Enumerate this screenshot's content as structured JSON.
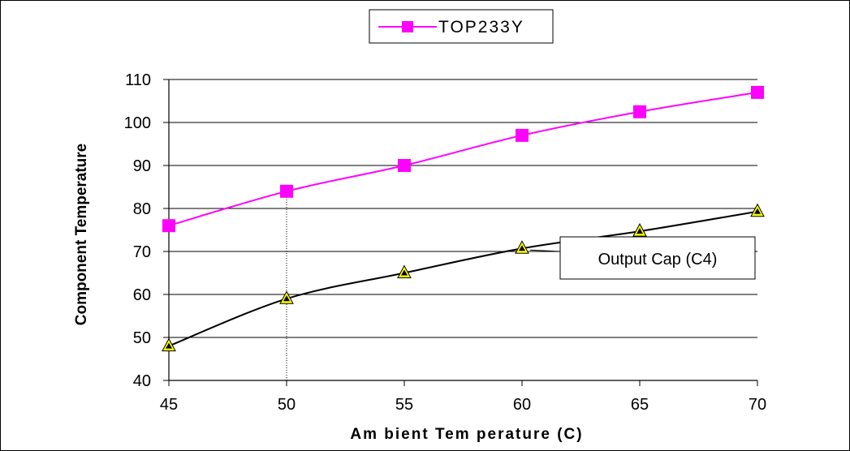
{
  "chart_data": {
    "type": "line",
    "xlabel": "Am bient Tem perature (C)",
    "ylabel": "Component Temperature",
    "x": [
      45,
      50,
      55,
      60,
      65,
      70
    ],
    "xlim": [
      45,
      70
    ],
    "ylim": [
      40,
      110
    ],
    "xticks": [
      "45",
      "50",
      "55",
      "60",
      "65",
      "70"
    ],
    "yticks": [
      "40",
      "50",
      "60",
      "70",
      "80",
      "90",
      "100",
      "110"
    ],
    "grid": "horizontal",
    "legend_position": "top-center",
    "series": [
      {
        "name": "TOP233Y",
        "values": [
          76,
          84,
          90,
          97,
          102.5,
          107
        ],
        "color": "#ff00ff",
        "marker": "square"
      },
      {
        "name": "Output Cap (C4)",
        "values": [
          48,
          59,
          65,
          70.7,
          74.7,
          79.3
        ],
        "color": "#000000",
        "marker": "triangle",
        "marker_fill": "#ffff00"
      }
    ],
    "annotations": [
      {
        "label": "Output Cap (C4)",
        "points_to_x": 60,
        "points_to_series": "Output Cap (C4)"
      }
    ],
    "guide_line_x": 50
  }
}
